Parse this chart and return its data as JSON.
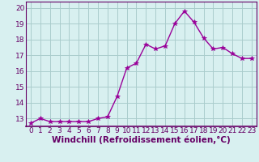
{
  "x": [
    0,
    1,
    2,
    3,
    4,
    5,
    6,
    7,
    8,
    9,
    10,
    11,
    12,
    13,
    14,
    15,
    16,
    17,
    18,
    19,
    20,
    21,
    22,
    23
  ],
  "y": [
    12.7,
    13.0,
    12.8,
    12.8,
    12.8,
    12.8,
    12.8,
    13.0,
    13.1,
    14.4,
    16.2,
    16.5,
    17.7,
    17.4,
    17.6,
    19.0,
    19.8,
    19.1,
    18.1,
    17.4,
    17.5,
    17.1,
    16.8,
    16.8
  ],
  "line_color": "#990099",
  "marker": "*",
  "marker_size": 4,
  "bg_color": "#d8f0f0",
  "grid_color": "#aacccc",
  "xlabel": "Windchill (Refroidissement éolien,°C)",
  "ylabel": "",
  "ylim": [
    12.5,
    20.4
  ],
  "xlim": [
    -0.5,
    23.5
  ],
  "yticks": [
    13,
    14,
    15,
    16,
    17,
    18,
    19,
    20
  ],
  "xticks": [
    0,
    1,
    2,
    3,
    4,
    5,
    6,
    7,
    8,
    9,
    10,
    11,
    12,
    13,
    14,
    15,
    16,
    17,
    18,
    19,
    20,
    21,
    22,
    23
  ],
  "tick_fontsize": 6.5,
  "xlabel_fontsize": 7.5,
  "label_color": "#660066",
  "tick_color": "#660066",
  "spine_color": "#660066",
  "line_width": 1.0
}
